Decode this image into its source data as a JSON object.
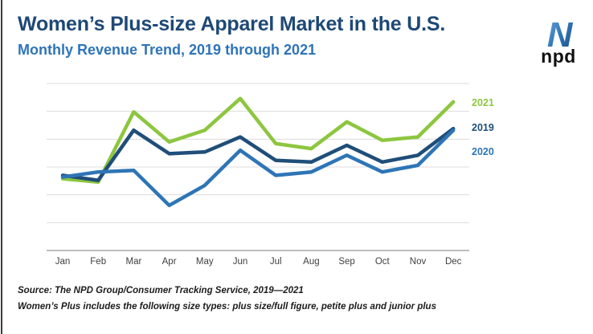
{
  "header": {
    "title": "Women’s Plus-size Apparel Market in the U.S.",
    "subtitle": "Monthly Revenue Trend, 2019 through 2021"
  },
  "logo": {
    "text": "npd",
    "icon_colors": {
      "light_blue": "#6fa8dc",
      "mid_blue": "#2e75b6",
      "dark_blue": "#1f4e79"
    }
  },
  "chart_data": {
    "type": "line",
    "categories": [
      "Jan",
      "Feb",
      "Mar",
      "Apr",
      "May",
      "Jun",
      "Jul",
      "Aug",
      "Sep",
      "Oct",
      "Nov",
      "Dec"
    ],
    "series": [
      {
        "name": "2021",
        "color": "#8dc63f",
        "values": [
          43,
          41,
          83,
          65,
          72,
          91,
          64,
          61,
          77,
          66,
          68,
          89
        ]
      },
      {
        "name": "2019",
        "color": "#1f4e79",
        "values": [
          45,
          42,
          72,
          58,
          59,
          68,
          54,
          53,
          63,
          53,
          57,
          73
        ]
      },
      {
        "name": "2020",
        "color": "#2e75b6",
        "values": [
          44,
          47,
          48,
          27,
          39,
          60,
          45,
          47,
          57,
          47,
          51,
          72
        ]
      }
    ],
    "title": "Women’s Plus-size Apparel Market in the U.S.",
    "subtitle": "Monthly Revenue Trend, 2019 through 2021",
    "xlabel": "",
    "ylabel": "",
    "ylim": [
      0,
      100
    ],
    "y_axis_unlabeled": true,
    "grid": true,
    "gridline_count": 7,
    "legend_position": "right",
    "note": "y values are relative estimates; chart shows no numeric y-axis labels"
  },
  "colors": {
    "title": "#1e4876",
    "subtitle": "#2e74b8",
    "gridline": "#dcdcdc",
    "x_axis_line": "#a9a9a9",
    "x_labels": "#3f3f3f",
    "footer_text": "#1c1c1c",
    "left_edge_line": "#3d3d3d"
  },
  "footer": {
    "source": "Source: The NPD Group/Consumer Tracking Service, 2019—2021",
    "note": "Women’s Plus includes the following size types: plus size/full figure, petite plus and junior plus"
  }
}
